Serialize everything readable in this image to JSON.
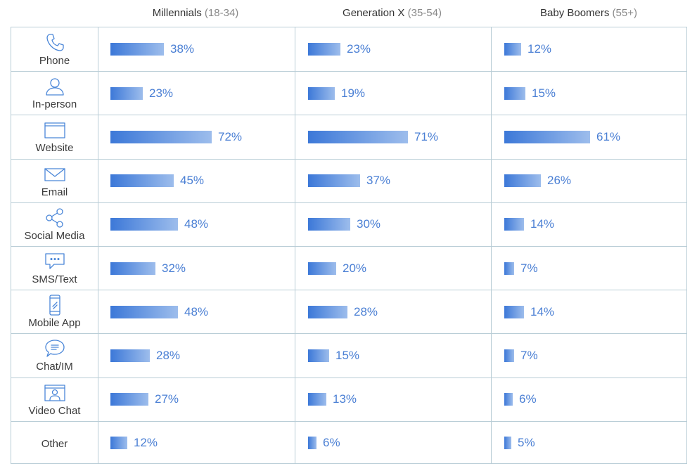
{
  "chart_data": {
    "type": "bar",
    "columns": [
      {
        "name": "Millennials",
        "range": "(18-34)"
      },
      {
        "name": "Generation X",
        "range": "(35-54)"
      },
      {
        "name": "Baby Boomers",
        "range": "(55+)"
      }
    ],
    "categories": [
      "Phone",
      "In-person",
      "Website",
      "Email",
      "Social Media",
      "SMS/Text",
      "Mobile App",
      "Chat/IM",
      "Video Chat",
      "Other"
    ],
    "icons": [
      "phone-icon",
      "person-icon",
      "browser-window-icon",
      "envelope-icon",
      "share-icon",
      "chat-bubble-dots-icon",
      "mobile-phone-icon",
      "chat-bubble-lines-icon",
      "video-chat-icon",
      ""
    ],
    "series": [
      {
        "name": "Millennials (18-34)",
        "values": [
          38,
          23,
          72,
          45,
          48,
          32,
          48,
          28,
          27,
          12
        ]
      },
      {
        "name": "Generation X (35-54)",
        "values": [
          23,
          19,
          71,
          37,
          30,
          20,
          28,
          15,
          13,
          6
        ]
      },
      {
        "name": "Baby Boomers (55+)",
        "values": [
          12,
          15,
          61,
          26,
          14,
          7,
          14,
          7,
          6,
          5
        ]
      }
    ],
    "labels": [
      [
        "38%",
        "23%",
        "72%",
        "45%",
        "48%",
        "32%",
        "48%",
        "28%",
        "27%",
        "12%"
      ],
      [
        "23%",
        "19%",
        "71%",
        "37%",
        "30%",
        "20%",
        "28%",
        "15%",
        "13%",
        "6%"
      ],
      [
        "12%",
        "15%",
        "61%",
        "26%",
        "14%",
        "7%",
        "14%",
        "7%",
        "6%",
        "5%"
      ]
    ],
    "xlim": [
      0,
      100
    ],
    "bar_color_start": "#3c78d8",
    "bar_color_end": "#9dbdec",
    "label_color": "#4a7fd4",
    "grid_color": "#b9cdd6"
  }
}
